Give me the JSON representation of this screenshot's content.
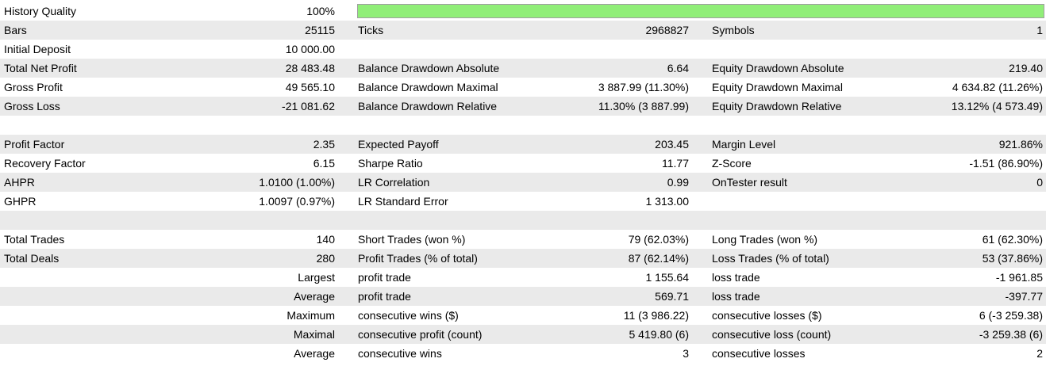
{
  "history_quality": {
    "label": "History Quality",
    "value": "100%",
    "fill_percent": 100,
    "bar_color": "#90ee78"
  },
  "rows": [
    {
      "shaded": true,
      "c1": "Bars",
      "v1": "25115",
      "c2": "Ticks",
      "v2": "2968827",
      "c3": "Symbols",
      "v3": "1"
    },
    {
      "shaded": false,
      "c1": "Initial Deposit",
      "v1": "10 000.00",
      "c2": "",
      "v2": "",
      "c3": "",
      "v3": ""
    },
    {
      "shaded": true,
      "c1": "Total Net Profit",
      "v1": "28 483.48",
      "c2": "Balance Drawdown Absolute",
      "v2": "6.64",
      "c3": "Equity Drawdown Absolute",
      "v3": "219.40"
    },
    {
      "shaded": false,
      "c1": "Gross Profit",
      "v1": "49 565.10",
      "c2": "Balance Drawdown Maximal",
      "v2": "3 887.99 (11.30%)",
      "c3": "Equity Drawdown Maximal",
      "v3": "4 634.82 (11.26%)"
    },
    {
      "shaded": true,
      "c1": "Gross Loss",
      "v1": "-21 081.62",
      "c2": "Balance Drawdown Relative",
      "v2": "11.30% (3 887.99)",
      "c3": "Equity Drawdown Relative",
      "v3": "13.12% (4 573.49)"
    },
    {
      "shaded": false,
      "c1": "",
      "v1": "",
      "c2": "",
      "v2": "",
      "c3": "",
      "v3": ""
    },
    {
      "shaded": true,
      "c1": "Profit Factor",
      "v1": "2.35",
      "c2": "Expected Payoff",
      "v2": "203.45",
      "c3": "Margin Level",
      "v3": "921.86%"
    },
    {
      "shaded": false,
      "c1": "Recovery Factor",
      "v1": "6.15",
      "c2": "Sharpe Ratio",
      "v2": "11.77",
      "c3": "Z-Score",
      "v3": "-1.51 (86.90%)"
    },
    {
      "shaded": true,
      "c1": "AHPR",
      "v1": "1.0100 (1.00%)",
      "c2": "LR Correlation",
      "v2": "0.99",
      "c3": "OnTester result",
      "v3": "0"
    },
    {
      "shaded": false,
      "c1": "GHPR",
      "v1": "1.0097 (0.97%)",
      "c2": "LR Standard Error",
      "v2": "1 313.00",
      "c3": "",
      "v3": ""
    },
    {
      "shaded": true,
      "c1": "",
      "v1": "",
      "c2": "",
      "v2": "",
      "c3": "",
      "v3": ""
    },
    {
      "shaded": false,
      "c1": "Total Trades",
      "v1": "140",
      "c2": "Short Trades (won %)",
      "v2": "79 (62.03%)",
      "c3": "Long Trades (won %)",
      "v3": "61 (62.30%)"
    },
    {
      "shaded": true,
      "c1": "Total Deals",
      "v1": "280",
      "c2": "Profit Trades (% of total)",
      "v2": "87 (62.14%)",
      "c3": "Loss Trades (% of total)",
      "v3": "53 (37.86%)"
    },
    {
      "shaded": false,
      "c1": "",
      "v1": "Largest",
      "c2": "profit trade",
      "v2": "1 155.64",
      "c3": "loss trade",
      "v3": "-1 961.85"
    },
    {
      "shaded": true,
      "c1": "",
      "v1": "Average",
      "c2": "profit trade",
      "v2": "569.71",
      "c3": "loss trade",
      "v3": "-397.77"
    },
    {
      "shaded": false,
      "c1": "",
      "v1": "Maximum",
      "c2": "consecutive wins ($)",
      "v2": "11 (3 986.22)",
      "c3": "consecutive losses ($)",
      "v3": "6 (-3 259.38)"
    },
    {
      "shaded": true,
      "c1": "",
      "v1": "Maximal",
      "c2": "consecutive profit (count)",
      "v2": "5 419.80 (6)",
      "c3": "consecutive loss (count)",
      "v3": "-3 259.38 (6)"
    },
    {
      "shaded": false,
      "c1": "",
      "v1": "Average",
      "c2": "consecutive wins",
      "v2": "3",
      "c3": "consecutive losses",
      "v3": "2"
    }
  ]
}
